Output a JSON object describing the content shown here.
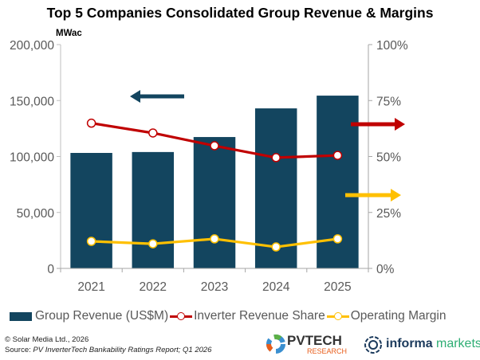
{
  "chart_data": {
    "type": "bar+line",
    "title": "Top 5 Companies Consolidated Group Revenue & Margins",
    "ylabel": "MWac",
    "categories": [
      "2021",
      "2022",
      "2023",
      "2024",
      "2025"
    ],
    "y_left": {
      "range": [
        0,
        200000
      ],
      "ticks": [
        "0",
        "50,000",
        "100,000",
        "150,000",
        "200,000"
      ]
    },
    "y_right": {
      "range": [
        0,
        1
      ],
      "ticks": [
        "0%",
        "25%",
        "50%",
        "75%",
        "100%"
      ]
    },
    "grid": false,
    "legend_position": "bottom",
    "series": [
      {
        "name": "Group Revenue (US$M)",
        "type": "bar",
        "axis": "left",
        "color": "#13455F",
        "values": [
          103200,
          104000,
          117400,
          143000,
          154400
        ]
      },
      {
        "name": "Inverter Revenue Share",
        "type": "line",
        "axis": "right",
        "color": "#C00000",
        "values": [
          0.649,
          0.605,
          0.548,
          0.495,
          0.505
        ]
      },
      {
        "name": "Operating Margin",
        "type": "line",
        "axis": "right",
        "color": "#FFC000",
        "values": [
          0.121,
          0.11,
          0.132,
          0.096,
          0.132
        ]
      }
    ],
    "annotations": [
      {
        "type": "arrow",
        "direction": "left",
        "color": "#13455F"
      },
      {
        "type": "arrow",
        "direction": "right",
        "color": "#C00000"
      },
      {
        "type": "arrow",
        "direction": "right",
        "color": "#FFC000"
      }
    ]
  },
  "footer": {
    "copyright": "© Solar Media Ltd., 2026",
    "source_label": "Source: ",
    "source_text": "PV InverterTech Bankability Ratings Report; Q1 2026"
  },
  "logos": {
    "pvtech_main": "PVTECH",
    "pvtech_sub": "RESEARCH",
    "informa_a": "informa",
    "informa_b": "markets"
  }
}
